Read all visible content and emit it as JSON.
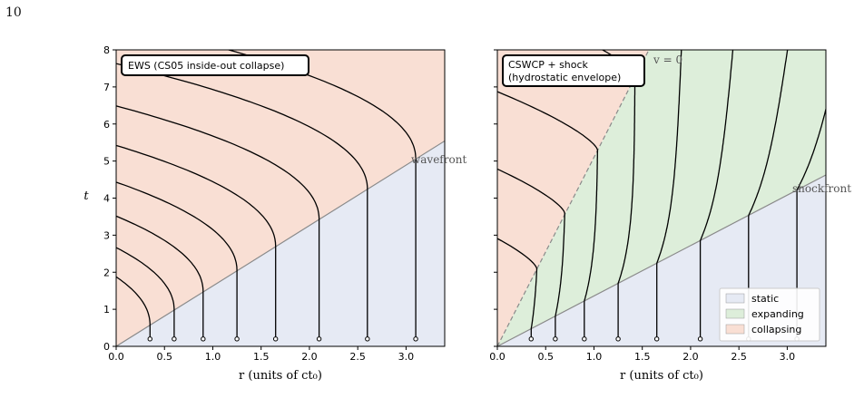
{
  "page_number": "10",
  "colors": {
    "static": "#e6eaf4",
    "expanding": "#ddeeda",
    "collapsing": "#f9dfd4",
    "boundary": "#8a8a8a",
    "worldline": "#000000"
  },
  "chart_data": [
    {
      "type": "line",
      "title": "EWS (CS05 inside-out collapse)",
      "xlabel": "r  (units of ct₀)",
      "ylabel": "t",
      "xlim": [
        0,
        3.4
      ],
      "ylim": [
        0,
        8
      ],
      "xticks": [
        "0.0",
        "0.5",
        "1.0",
        "1.5",
        "2.0",
        "2.5",
        "3.0"
      ],
      "yticks": [
        "0",
        "1",
        "2",
        "3",
        "4",
        "5",
        "6",
        "7",
        "8"
      ],
      "front": {
        "label": "wavefront",
        "slope": 1.63
      },
      "regions": [
        "static",
        "collapsing"
      ],
      "worldline_start_r": [
        0.35,
        0.6,
        0.9,
        1.25,
        1.65,
        2.1,
        2.6,
        3.1
      ],
      "worldline_start_t": 0.2
    },
    {
      "type": "line",
      "title": "CSWCP + shock\n(hydrostatic envelope)",
      "xlabel": "r  (units of ct₀)",
      "ylabel": "",
      "xlim": [
        0,
        3.4
      ],
      "ylim": [
        0,
        8
      ],
      "xticks": [
        "0.0",
        "0.5",
        "1.0",
        "1.5",
        "2.0",
        "2.5",
        "3.0"
      ],
      "front": {
        "label": "shockfront",
        "slope": 1.36
      },
      "v0_line": {
        "label": "v = 0",
        "slope": 5.1
      },
      "regions": [
        "static",
        "expanding",
        "collapsing"
      ],
      "worldline_start_r": [
        0.35,
        0.6,
        0.9,
        1.25,
        1.65,
        2.1,
        2.6,
        3.1
      ],
      "worldline_start_t": 0.2,
      "legend": {
        "position": "lower-right",
        "entries": [
          "static",
          "expanding",
          "collapsing"
        ]
      }
    }
  ]
}
